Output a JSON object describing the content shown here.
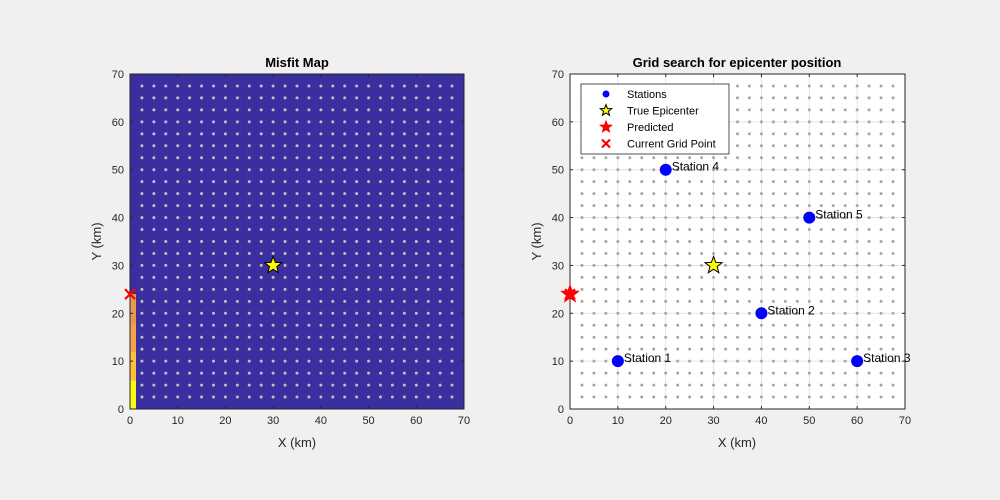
{
  "chart_data": [
    {
      "type": "heatmap",
      "title": "Misfit Map",
      "xlabel": "X (km)",
      "ylabel": "Y (km)",
      "xlim": [
        0,
        70
      ],
      "ylim": [
        0,
        70
      ],
      "xticks": [
        0,
        10,
        20,
        30,
        40,
        50,
        60,
        70
      ],
      "yticks": [
        0,
        10,
        20,
        30,
        40,
        50,
        60,
        70
      ],
      "grid_spacing": 2.5,
      "background_color": "#3b2fa0",
      "grid_dot_color": "#bfbfbf",
      "evaluated_column": {
        "x": 0,
        "y_from": 0,
        "y_to": 24,
        "colors": [
          "#f9fb0e",
          "#fcc03a",
          "#f4a24c",
          "#e9994f"
        ]
      },
      "true_epicenter": {
        "x": 30,
        "y": 30,
        "marker": "star",
        "color": "#ffff00"
      },
      "current_grid_point": {
        "x": 0,
        "y": 24,
        "marker": "x",
        "color": "#ff0000"
      }
    },
    {
      "type": "scatter",
      "title": "Grid search for epicenter position",
      "xlabel": "X (km)",
      "ylabel": "Y (km)",
      "xlim": [
        0,
        70
      ],
      "ylim": [
        0,
        70
      ],
      "xticks": [
        0,
        10,
        20,
        30,
        40,
        50,
        60,
        70
      ],
      "yticks": [
        0,
        10,
        20,
        30,
        40,
        50,
        60,
        70
      ],
      "grid": true,
      "grid_spacing": 2.5,
      "grid_dot_color": "#a6a6a6",
      "stations": [
        {
          "label": "Station 1",
          "x": 10,
          "y": 10
        },
        {
          "label": "Station 2",
          "x": 40,
          "y": 20
        },
        {
          "label": "Station 3",
          "x": 60,
          "y": 10
        },
        {
          "label": "Station 4",
          "x": 20,
          "y": 50
        },
        {
          "label": "Station 5",
          "x": 50,
          "y": 40
        }
      ],
      "station_color": "#0000ff",
      "true_epicenter": {
        "x": 30,
        "y": 30,
        "color": "#ffff00"
      },
      "predicted": {
        "x": 0,
        "y": 24,
        "color": "#ff0000"
      },
      "current_grid_point": {
        "x": 0,
        "y": 24,
        "color": "#ff0000"
      },
      "legend": {
        "placement": "top-left",
        "entries": [
          {
            "label": "Stations",
            "marker": "dot"
          },
          {
            "label": "True Epicenter",
            "marker": "star-yellow"
          },
          {
            "label": "Predicted",
            "marker": "star-red"
          },
          {
            "label": "Current Grid Point",
            "marker": "x-red"
          }
        ]
      }
    }
  ]
}
